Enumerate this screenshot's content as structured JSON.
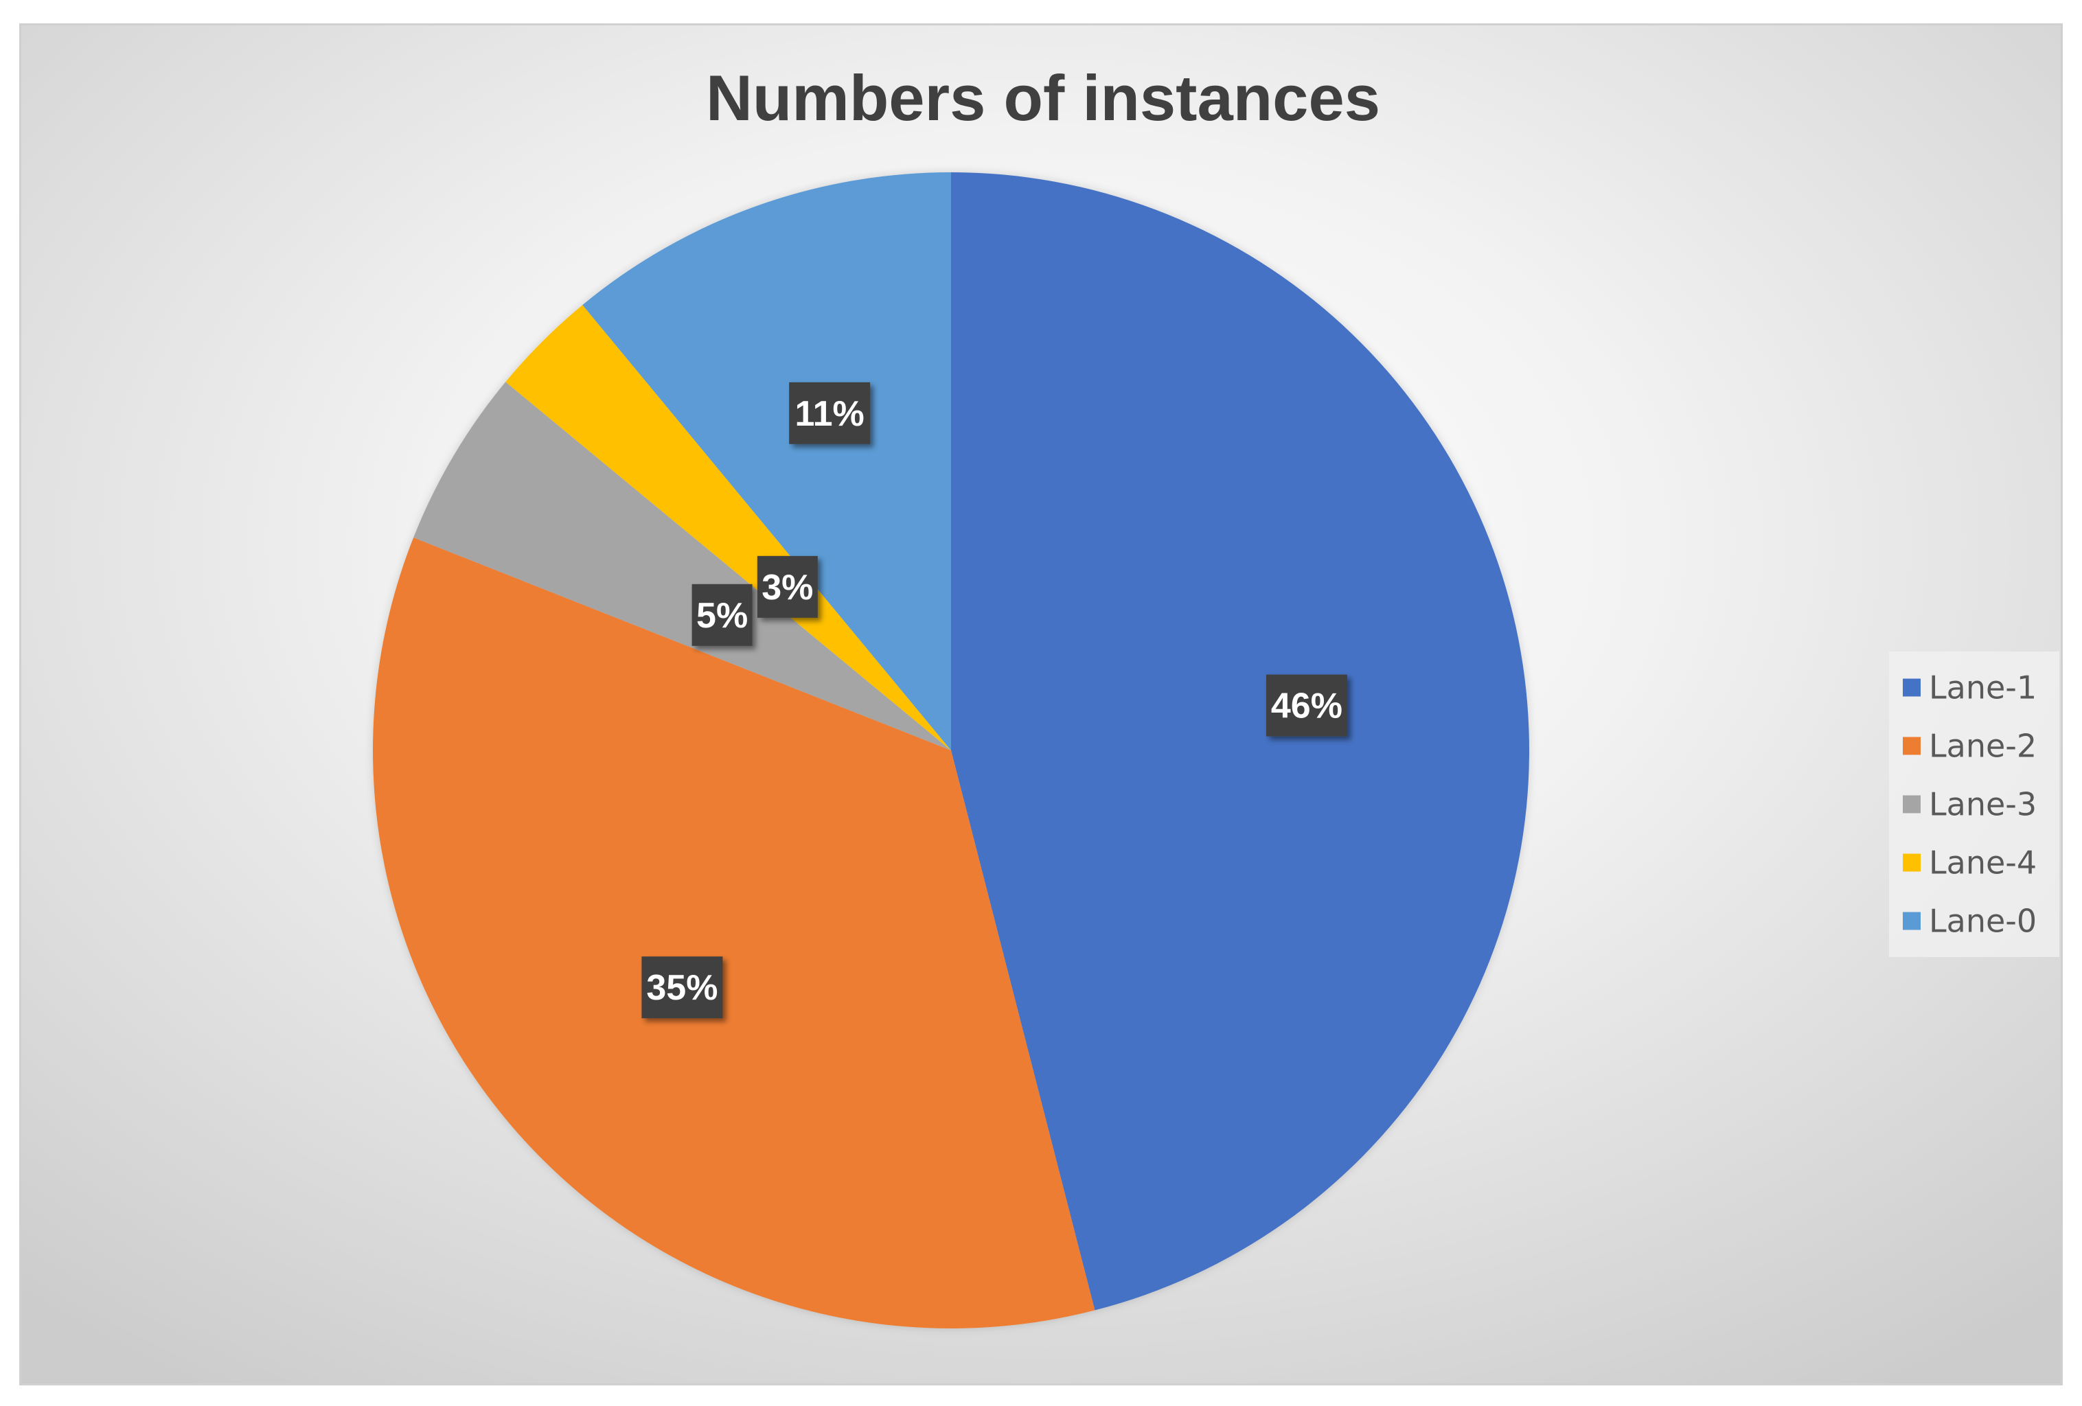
{
  "chart_data": {
    "type": "pie",
    "title": "Numbers of instances",
    "categories": [
      "Lane-1",
      "Lane-2",
      "Lane-3",
      "Lane-4",
      "Lane-0"
    ],
    "values": [
      46,
      35,
      5,
      3,
      11
    ],
    "data_labels": [
      "46%",
      "35%",
      "5%",
      "3%",
      "11%"
    ],
    "colors": [
      "#4472C4",
      "#ED7D31",
      "#A5A5A5",
      "#FFC000",
      "#5B9BD5"
    ],
    "start_angle": "12 o'clock",
    "direction": "clockwise",
    "legend": {
      "position": "right",
      "entries": [
        "Lane-1",
        "Lane-2",
        "Lane-3",
        "Lane-4",
        "Lane-0"
      ]
    }
  }
}
